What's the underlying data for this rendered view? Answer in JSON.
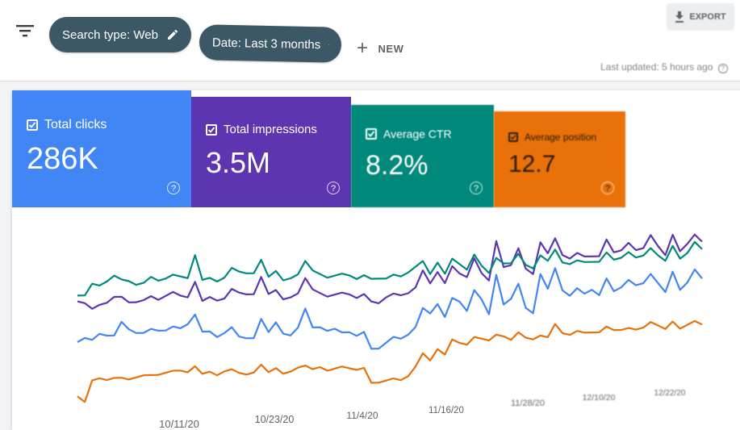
{
  "toolbar": {
    "chip_search_type": "Search type: Web",
    "chip_date": "Date: Last 3 months",
    "new_label": "NEW",
    "export_label": "EXPORT",
    "last_updated": "Last updated: 5 hours ago"
  },
  "metrics": [
    {
      "label": "Total clicks",
      "value": "286K",
      "color": "#4285f4"
    },
    {
      "label": "Total impressions",
      "value": "3.5M",
      "color": "#5e35b1"
    },
    {
      "label": "Average CTR",
      "value": "8.2%",
      "color": "#00897b"
    },
    {
      "label": "Average position",
      "value": "12.7",
      "color": "#e8710a"
    }
  ],
  "chart_data": {
    "type": "line",
    "x_tick_labels": [
      "10/11/20",
      "10/23/20",
      "11/4/20",
      "11/16/20",
      "11/28/20",
      "12/10/20",
      "12/22/20"
    ],
    "series": [
      {
        "name": "Total clicks",
        "color": "#4285f4",
        "values": [
          40,
          42,
          41,
          44,
          43,
          43,
          50,
          46,
          44,
          44,
          46,
          45,
          45,
          47,
          46,
          48,
          53,
          44,
          44,
          41,
          43,
          46,
          41,
          40,
          40,
          50,
          43,
          48,
          42,
          41,
          45,
          55,
          45,
          45,
          43,
          44,
          42,
          42,
          40,
          42,
          33,
          33,
          36,
          39,
          38,
          40,
          44,
          54,
          51,
          56,
          49,
          59,
          57,
          52,
          63,
          58,
          50,
          71,
          55,
          58,
          66,
          53,
          50,
          71,
          63,
          74,
          62,
          59,
          63,
          60,
          62,
          59,
          68,
          61,
          63,
          67,
          64,
          65,
          70,
          65,
          60,
          71,
          61,
          65,
          72,
          67
        ]
      },
      {
        "name": "Total impressions",
        "color": "#5e35b1",
        "values": [
          61,
          60,
          57,
          59,
          60,
          63,
          63,
          60,
          60,
          61,
          63,
          61,
          63,
          65,
          63,
          62,
          70,
          60,
          62,
          60,
          61,
          66,
          64,
          63,
          63,
          72,
          63,
          65,
          60,
          61,
          63,
          71,
          65,
          63,
          61,
          62,
          63,
          62,
          60,
          62,
          58,
          57,
          60,
          62,
          61,
          62,
          65,
          74,
          67,
          73,
          67,
          76,
          72,
          70,
          80,
          72,
          68,
          89,
          75,
          76,
          85,
          74,
          71,
          88,
          82,
          90,
          81,
          79,
          82,
          80,
          80,
          80,
          89,
          82,
          83,
          87,
          83,
          84,
          91,
          85,
          80,
          91,
          82,
          86,
          91,
          87
        ]
      },
      {
        "name": "Average CTR",
        "color": "#00897b",
        "values": [
          64,
          64,
          70,
          69,
          71,
          74,
          72,
          71,
          69,
          70,
          73,
          71,
          72,
          74,
          73,
          72,
          84,
          71,
          72,
          70,
          72,
          77,
          75,
          74,
          74,
          81,
          72,
          75,
          70,
          71,
          73,
          80,
          75,
          73,
          71,
          72,
          73,
          72,
          70,
          72,
          70,
          70,
          70,
          72,
          71,
          73,
          76,
          79,
          72,
          78,
          72,
          80,
          77,
          74,
          82,
          76,
          72,
          80,
          77,
          77,
          82,
          76,
          74,
          81,
          78,
          84,
          77,
          76,
          78,
          77,
          77,
          77,
          82,
          78,
          79,
          82,
          79,
          80,
          84,
          80,
          77,
          85,
          78,
          81,
          87,
          83
        ]
      },
      {
        "name": "Average position",
        "color": "#e8710a",
        "values": [
          12,
          9,
          20,
          21,
          20,
          21,
          21,
          20,
          21,
          22,
          22,
          22,
          23,
          24,
          24,
          23,
          26,
          22,
          23,
          21,
          23,
          24,
          22,
          21,
          22,
          26,
          22,
          24,
          21,
          22,
          24,
          25,
          23,
          24,
          22,
          23,
          24,
          23,
          22,
          23,
          15,
          15,
          16,
          17,
          16,
          18,
          23,
          30,
          26,
          32,
          29,
          37,
          35,
          34,
          38,
          37,
          36,
          39,
          38,
          36,
          40,
          37,
          36,
          38,
          37,
          44,
          39,
          38,
          40,
          39,
          39,
          39,
          42,
          40,
          40,
          41,
          40,
          41,
          44,
          42,
          40,
          44,
          40,
          42,
          44,
          42
        ]
      }
    ],
    "ylim": [
      0,
      100
    ],
    "grid": false,
    "legend": "none"
  }
}
